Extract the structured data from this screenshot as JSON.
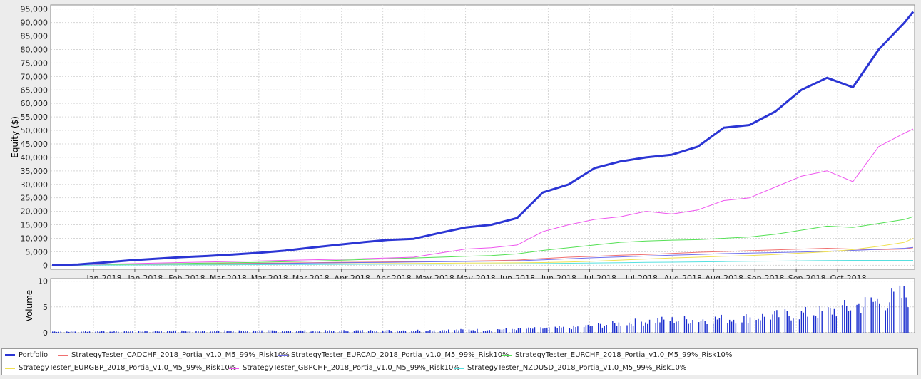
{
  "chart_data": [
    {
      "type": "line",
      "ylabel": "Equity ($)",
      "ylim": [
        -1500,
        96500
      ],
      "y_ticks": [
        "0",
        "5,000",
        "10,000",
        "15,000",
        "20,000",
        "25,000",
        "30,000",
        "35,000",
        "40,000",
        "45,000",
        "50,000",
        "55,000",
        "60,000",
        "65,000",
        "70,000",
        "75,000",
        "80,000",
        "85,000",
        "90,000",
        "95,000"
      ],
      "x_tick_labels": [
        "Jan-2018",
        "Jan-2018",
        "Feb-2018",
        "Mar-2018",
        "Mar-2018",
        "Mar-2018",
        "Apr-2018",
        "Apr-2018",
        "May-2018",
        "May-2018",
        "Jun-2018",
        "Jun-2018",
        "Jul-2018",
        "Jul-2018",
        "Aug-2018",
        "Aug-2018",
        "Sep-2018",
        "Sep-2018",
        "Oct-2018"
      ],
      "x": [
        0,
        0.03,
        0.06,
        0.09,
        0.12,
        0.15,
        0.18,
        0.21,
        0.24,
        0.27,
        0.3,
        0.33,
        0.36,
        0.39,
        0.42,
        0.45,
        0.48,
        0.51,
        0.54,
        0.57,
        0.6,
        0.63,
        0.66,
        0.69,
        0.72,
        0.75,
        0.78,
        0.81,
        0.84,
        0.87,
        0.9,
        0.93,
        0.96,
        0.99,
        1.0
      ],
      "grid": true,
      "series": [
        {
          "name": "Portfolio",
          "color": "#2b35d4",
          "width": 3,
          "values": [
            0,
            300,
            1000,
            1800,
            2400,
            3000,
            3400,
            4000,
            4600,
            5400,
            6500,
            7500,
            8500,
            9400,
            9800,
            12000,
            14000,
            15000,
            17500,
            27000,
            30000,
            36000,
            38500,
            40000,
            41000,
            44000,
            51000,
            52000,
            57000,
            65000,
            69500,
            66000,
            80000,
            90000,
            94000
          ]
        },
        {
          "name": "StrategyTester_CADCHF_2018_Portia_v1.0_M5_99%_Risk10%",
          "color": "#f07070",
          "width": 1,
          "values": [
            0,
            50,
            150,
            250,
            350,
            450,
            550,
            650,
            750,
            850,
            950,
            1050,
            1150,
            1250,
            1350,
            1450,
            1550,
            1700,
            1900,
            2500,
            3000,
            3300,
            3700,
            4000,
            4400,
            4800,
            5100,
            5400,
            5700,
            6000,
            6300,
            6000,
            5800,
            6000,
            6500
          ]
        },
        {
          "name": "StrategyTester_EURCAD_2018_Portia_v1.0_M5_99%_Risk10%",
          "color": "#7070ee",
          "width": 1,
          "values": [
            0,
            50,
            120,
            200,
            280,
            360,
            440,
            520,
            600,
            700,
            800,
            900,
            1000,
            1100,
            1200,
            1300,
            1400,
            1500,
            1650,
            2000,
            2400,
            2800,
            3100,
            3400,
            3700,
            4000,
            4300,
            4500,
            4700,
            4900,
            5200,
            5500,
            5900,
            6300,
            6600
          ]
        },
        {
          "name": "StrategyTester_EURCHF_2018_Portia_v1.0_M5_99%_Risk10%",
          "color": "#55e055",
          "width": 1,
          "values": [
            0,
            80,
            200,
            350,
            500,
            650,
            800,
            950,
            1100,
            1300,
            1500,
            1800,
            2100,
            2400,
            2700,
            3000,
            3300,
            3600,
            4200,
            5500,
            6500,
            7500,
            8500,
            9000,
            9300,
            9500,
            10000,
            10500,
            11500,
            13000,
            14500,
            14000,
            15500,
            17000,
            18000
          ]
        },
        {
          "name": "StrategyTester_EURGBP_2018_Portia_v1.0_M5_99%_Risk10%",
          "color": "#f0e050",
          "width": 1,
          "values": [
            0,
            30,
            80,
            130,
            180,
            230,
            280,
            330,
            380,
            430,
            480,
            530,
            580,
            630,
            700,
            750,
            800,
            850,
            900,
            1000,
            1200,
            1500,
            1900,
            2300,
            2700,
            3000,
            3300,
            3600,
            4000,
            4500,
            5000,
            5800,
            7000,
            8500,
            10000
          ]
        },
        {
          "name": "StrategyTester_GBPCHF_2018_Portia_v1.0_M5_99%_Risk10%",
          "color": "#ee55ee",
          "width": 1,
          "values": [
            0,
            150,
            400,
            600,
            800,
            1000,
            1200,
            1400,
            1600,
            1800,
            2000,
            2200,
            2400,
            2700,
            3000,
            4500,
            6000,
            6500,
            7500,
            12500,
            15000,
            17000,
            18000,
            20000,
            19000,
            20500,
            24000,
            25000,
            29000,
            33000,
            35000,
            31000,
            44000,
            49000,
            50500
          ]
        },
        {
          "name": "StrategyTester_NZDUSD_2018_Portia_v1.0_M5_99%_Risk10%",
          "color": "#55e0e0",
          "width": 1,
          "values": [
            0,
            20,
            50,
            80,
            110,
            140,
            170,
            200,
            230,
            260,
            290,
            320,
            350,
            380,
            410,
            440,
            470,
            500,
            550,
            650,
            750,
            850,
            950,
            1050,
            1150,
            1250,
            1350,
            1450,
            1550,
            1650,
            1750,
            1800,
            1800,
            1800,
            1800
          ]
        }
      ]
    },
    {
      "type": "bar",
      "ylabel": "Volume",
      "ylim": [
        0,
        10.5
      ],
      "y_ticks": [
        "0",
        "5",
        "10"
      ],
      "color": "#1c2fcf",
      "profile_x": [
        0,
        0.1,
        0.2,
        0.3,
        0.4,
        0.5,
        0.6,
        0.7,
        0.8,
        0.9,
        1.0
      ],
      "profile_max": [
        0.3,
        0.4,
        0.5,
        0.5,
        0.6,
        0.8,
        1.3,
        3.2,
        3.8,
        5.5,
        10.2
      ]
    }
  ]
}
